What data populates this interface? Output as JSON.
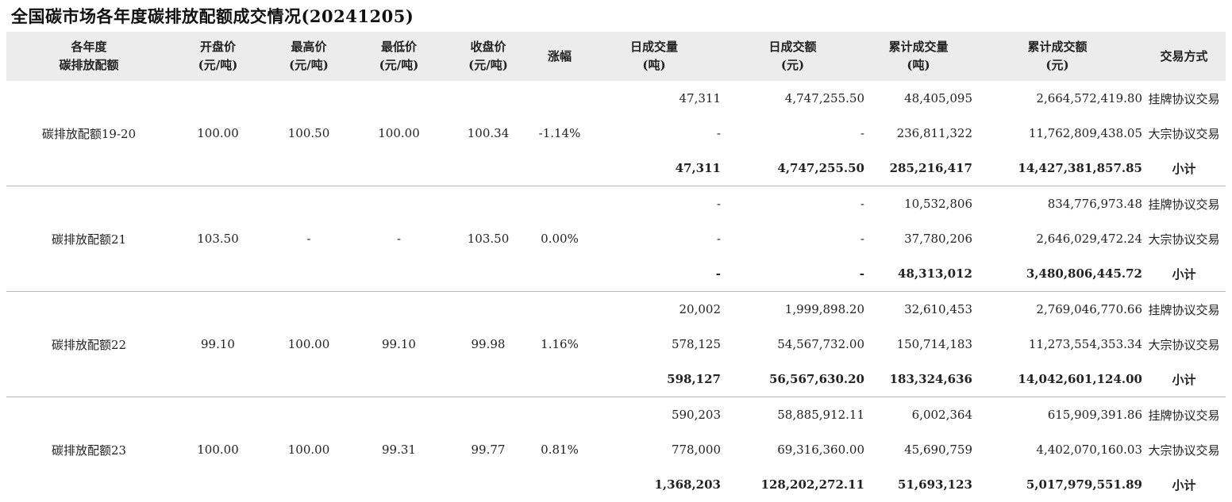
{
  "title": "全国碳市场各年度碳排放配额成交情况(20241205)",
  "headers": [
    "各年度\n碳排放配额",
    "开盘价\n(元/吨)",
    "最高价\n(元/吨)",
    "最低价\n(元/吨)",
    "收盘价\n(元/吨)",
    "涨幅",
    "日成交量\n(吨)",
    "日成交额\n(元)",
    "累计成交量\n(吨)",
    "累计成交额\n(元)",
    "交易方式"
  ],
  "groups": [
    {
      "name": "碳排放配额19-20",
      "open": "100.00",
      "high": "100.50",
      "low": "100.00",
      "close": "100.34",
      "change": "-1.14%",
      "rows": [
        {
          "vol": "47,311",
          "amt": "4,747,255.50",
          "cumvol": "48,405,095",
          "cumamt": "2,664,572,419.80",
          "mode": "挂牌协议交易"
        },
        {
          "vol": "-",
          "amt": "-",
          "cumvol": "236,811,322",
          "cumamt": "11,762,809,438.05",
          "mode": "大宗协议交易"
        },
        {
          "vol": "47,311",
          "amt": "4,747,255.50",
          "cumvol": "285,216,417",
          "cumamt": "14,427,381,857.85",
          "mode": "小计"
        }
      ]
    },
    {
      "name": "碳排放配额21",
      "open": "103.50",
      "high": "-",
      "low": "-",
      "close": "103.50",
      "change": "0.00%",
      "rows": [
        {
          "vol": "-",
          "amt": "-",
          "cumvol": "10,532,806",
          "cumamt": "834,776,973.48",
          "mode": "挂牌协议交易"
        },
        {
          "vol": "-",
          "amt": "-",
          "cumvol": "37,780,206",
          "cumamt": "2,646,029,472.24",
          "mode": "大宗协议交易"
        },
        {
          "vol": "-",
          "amt": "-",
          "cumvol": "48,313,012",
          "cumamt": "3,480,806,445.72",
          "mode": "小计"
        }
      ]
    },
    {
      "name": "碳排放配额22",
      "open": "99.10",
      "high": "100.00",
      "low": "99.10",
      "close": "99.98",
      "change": "1.16%",
      "rows": [
        {
          "vol": "20,002",
          "amt": "1,999,898.20",
          "cumvol": "32,610,453",
          "cumamt": "2,769,046,770.66",
          "mode": "挂牌协议交易"
        },
        {
          "vol": "578,125",
          "amt": "54,567,732.00",
          "cumvol": "150,714,183",
          "cumamt": "11,273,554,353.34",
          "mode": "大宗协议交易"
        },
        {
          "vol": "598,127",
          "amt": "56,567,630.20",
          "cumvol": "183,324,636",
          "cumamt": "14,042,601,124.00",
          "mode": "小计"
        }
      ]
    },
    {
      "name": "碳排放配额23",
      "open": "100.00",
      "high": "100.00",
      "low": "99.31",
      "close": "99.77",
      "change": "0.81%",
      "rows": [
        {
          "vol": "590,203",
          "amt": "58,885,912.11",
          "cumvol": "6,002,364",
          "cumamt": "615,909,391.86",
          "mode": "挂牌协议交易"
        },
        {
          "vol": "778,000",
          "amt": "69,316,360.00",
          "cumvol": "45,690,759",
          "cumamt": "4,402,070,160.03",
          "mode": "大宗协议交易"
        },
        {
          "vol": "1,368,203",
          "amt": "128,202,272.11",
          "cumvol": "51,693,123",
          "cumamt": "5,017,979,551.89",
          "mode": "小计"
        }
      ]
    }
  ]
}
